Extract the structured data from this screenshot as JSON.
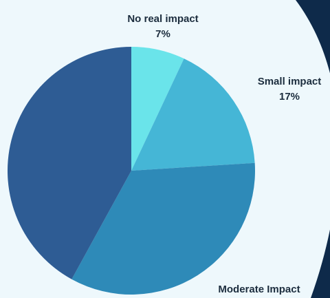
{
  "page": {
    "background": "#eef8fc",
    "backdrop_color": "#0e2a4a"
  },
  "chart_data": {
    "type": "pie",
    "title": "",
    "slices": [
      {
        "label": "No real impact",
        "value": 7,
        "value_label": "7%",
        "color": "#6ae4ea"
      },
      {
        "label": "Small impact",
        "value": 17,
        "value_label": "17%",
        "color": "#45b6d6"
      },
      {
        "label": "Moderate Impact",
        "value": 34,
        "value_label": "",
        "color": "#2e8ab8"
      },
      {
        "label": "",
        "value": 42,
        "value_label": "",
        "color": "#2e5c94"
      }
    ],
    "start_angle": "12 o'clock",
    "direction": "clockwise",
    "legend": "none"
  }
}
